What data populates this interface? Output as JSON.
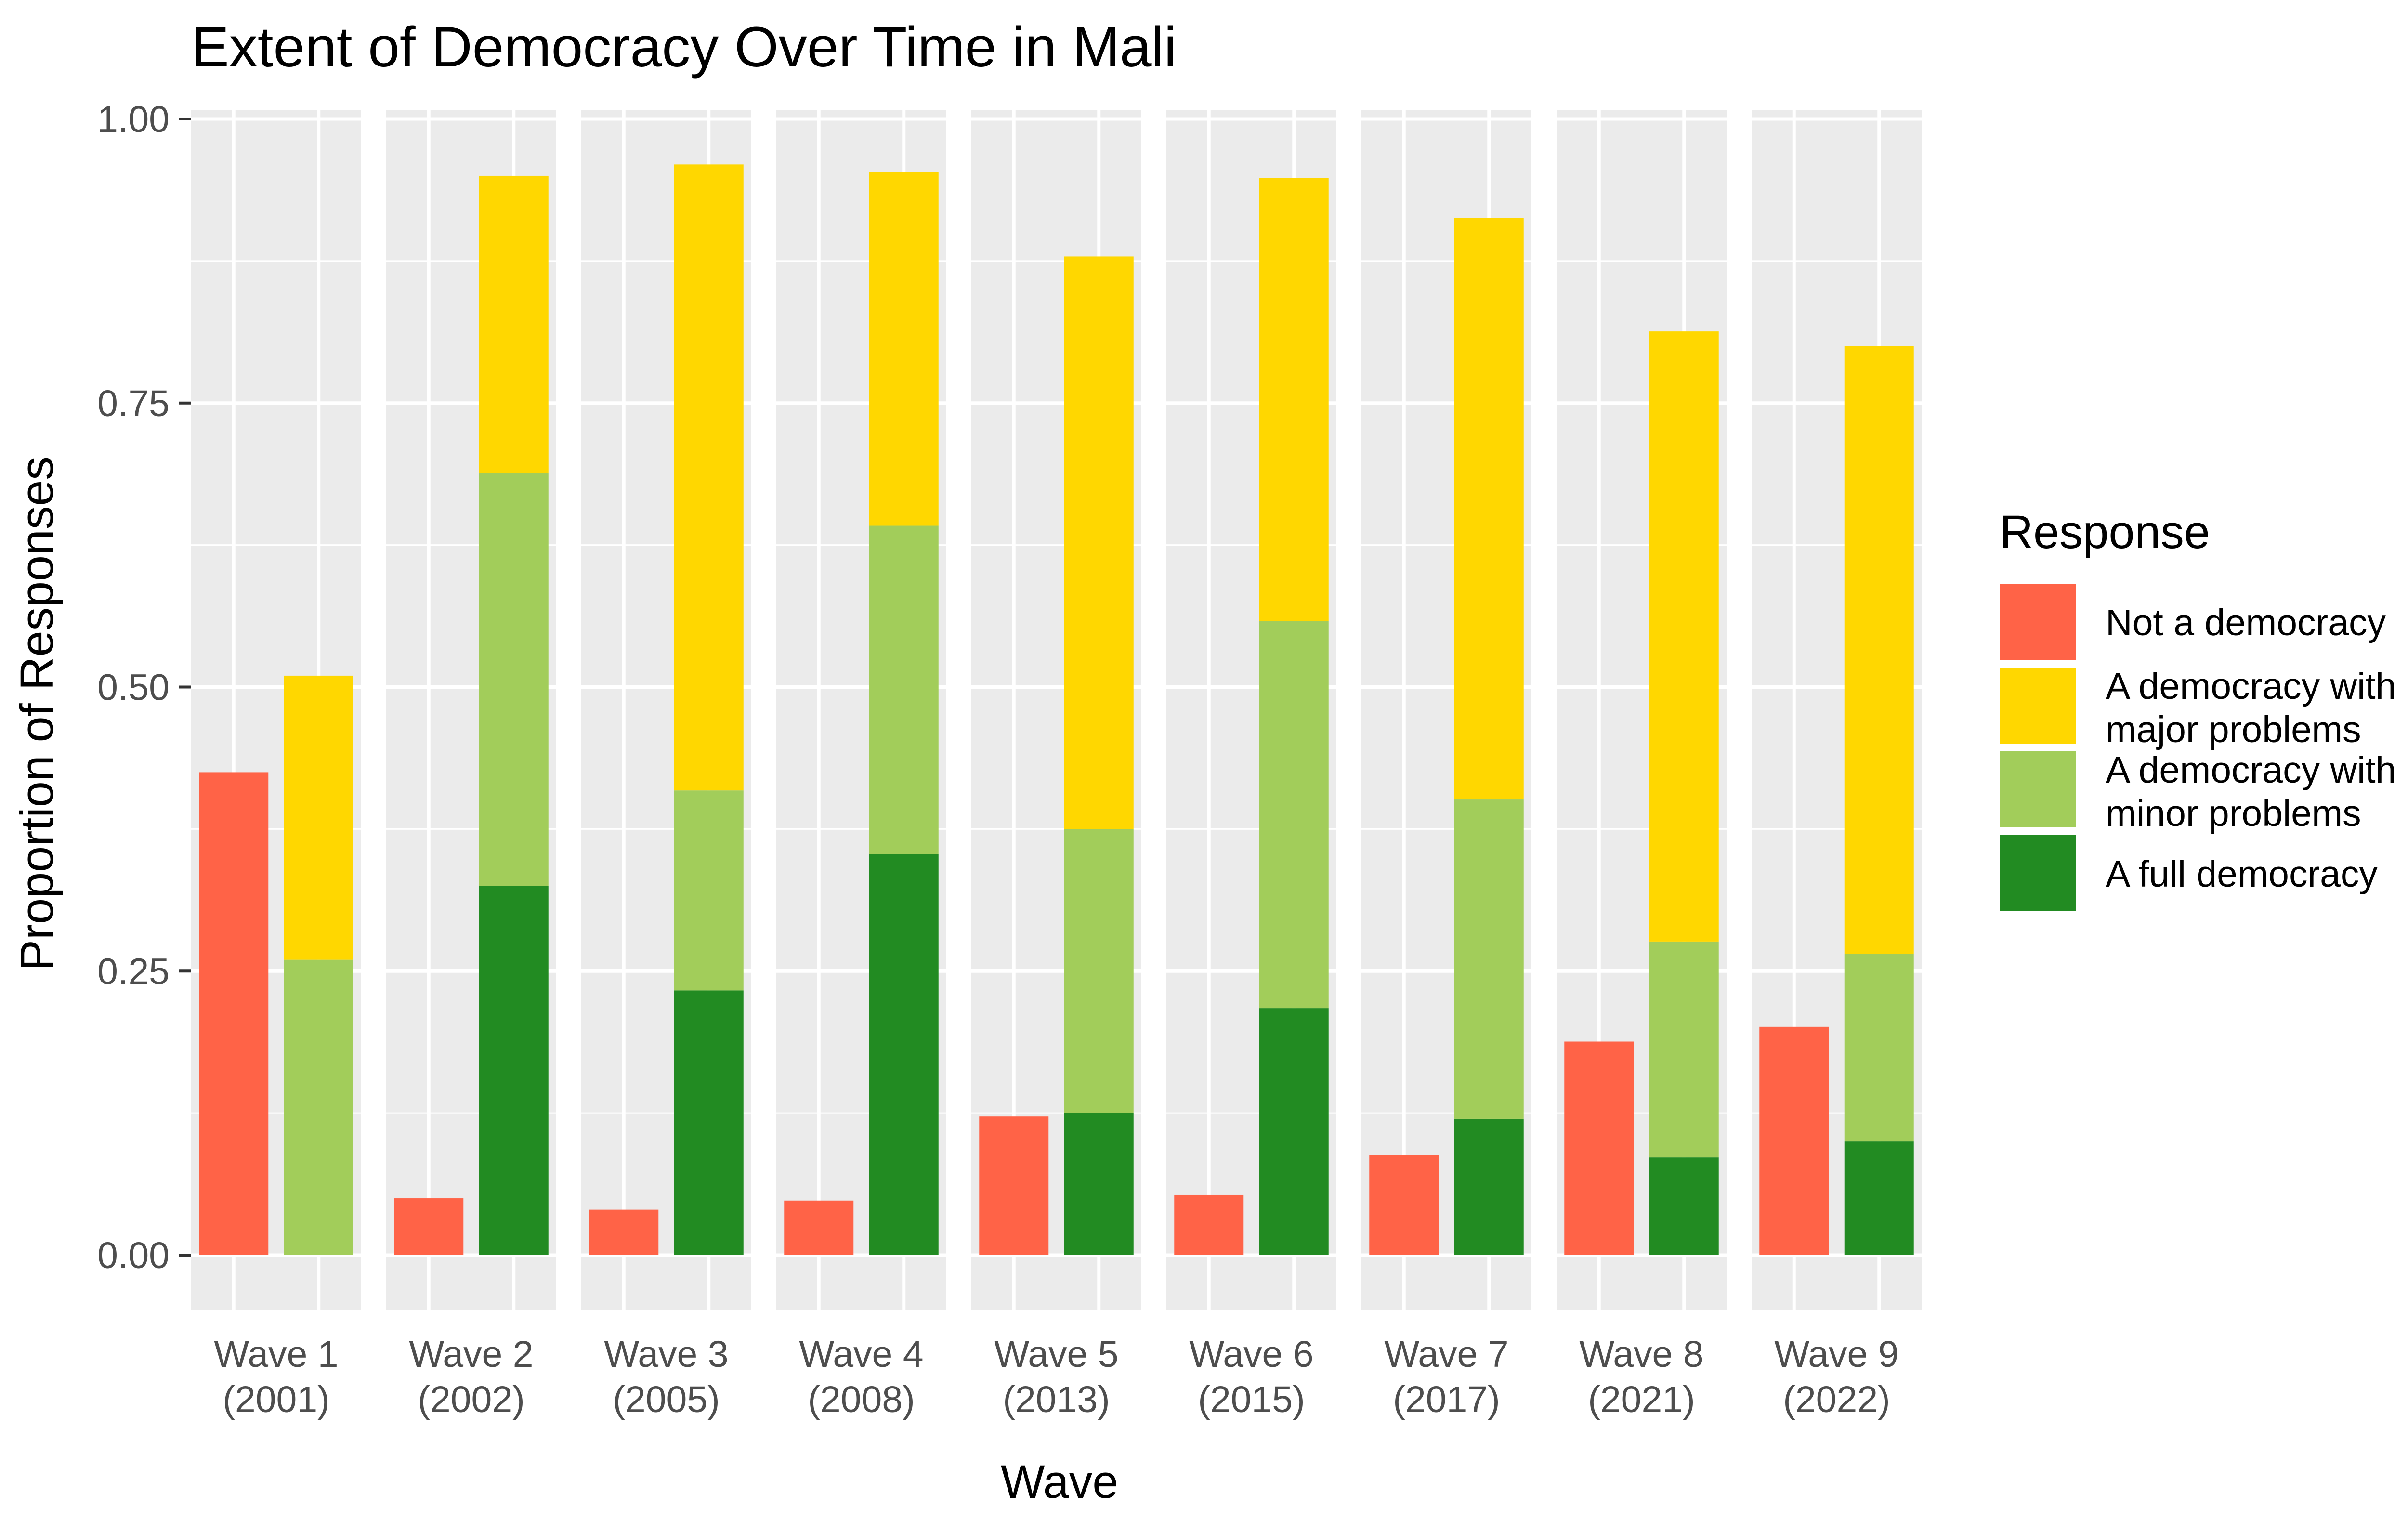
{
  "chart_data": {
    "type": "bar",
    "title": "Extent of Democracy Over Time in Mali",
    "xlabel": "Wave",
    "ylabel": "Proportion of Responses",
    "ylim": [
      0,
      1.05
    ],
    "yticks": [
      "0.00",
      "0.25",
      "0.50",
      "0.75",
      "1.00"
    ],
    "ytick_values": [
      0,
      0.25,
      0.5,
      0.75,
      1.0
    ],
    "grid": true,
    "legend_position": "right",
    "legend_title": "Response",
    "legend": [
      {
        "label_lines": [
          "Not a democracy"
        ],
        "color": "#FF6347"
      },
      {
        "label_lines": [
          "A democracy with",
          "major problems"
        ],
        "color": "#FFD700"
      },
      {
        "label_lines": [
          "A democracy with",
          "minor problems"
        ],
        "color": "#A2CD5A"
      },
      {
        "label_lines": [
          "A full democracy"
        ],
        "color": "#228B22"
      }
    ],
    "colors": {
      "not_democracy": "#FF6347",
      "major_problems": "#FFD700",
      "minor_problems": "#A2CD5A",
      "full_democracy": "#228B22",
      "panel_bg": "#EBEBEB",
      "grid": "#FFFFFF"
    },
    "facets": [
      {
        "wave": "Wave 1",
        "year": "(2001)",
        "not_democracy": 0.425,
        "full_democracy": 0.0,
        "minor_problems": 0.26,
        "major_problems": 0.25
      },
      {
        "wave": "Wave 2",
        "year": "(2002)",
        "not_democracy": 0.05,
        "full_democracy": 0.325,
        "minor_problems": 0.363,
        "major_problems": 0.262
      },
      {
        "wave": "Wave 3",
        "year": "(2005)",
        "not_democracy": 0.04,
        "full_democracy": 0.233,
        "minor_problems": 0.176,
        "major_problems": 0.551
      },
      {
        "wave": "Wave 4",
        "year": "(2008)",
        "not_democracy": 0.048,
        "full_democracy": 0.353,
        "minor_problems": 0.289,
        "major_problems": 0.311
      },
      {
        "wave": "Wave 5",
        "year": "(2013)",
        "not_democracy": 0.122,
        "full_democracy": 0.125,
        "minor_problems": 0.25,
        "major_problems": 0.504
      },
      {
        "wave": "Wave 6",
        "year": "(2015)",
        "not_democracy": 0.053,
        "full_democracy": 0.217,
        "minor_problems": 0.341,
        "major_problems": 0.39
      },
      {
        "wave": "Wave 7",
        "year": "(2017)",
        "not_democracy": 0.088,
        "full_democracy": 0.12,
        "minor_problems": 0.281,
        "major_problems": 0.512
      },
      {
        "wave": "Wave 8",
        "year": "(2021)",
        "not_democracy": 0.188,
        "full_democracy": 0.086,
        "minor_problems": 0.19,
        "major_problems": 0.537
      },
      {
        "wave": "Wave 9",
        "year": "(2022)",
        "not_democracy": 0.201,
        "full_democracy": 0.1,
        "minor_problems": 0.165,
        "major_problems": 0.535
      }
    ]
  }
}
